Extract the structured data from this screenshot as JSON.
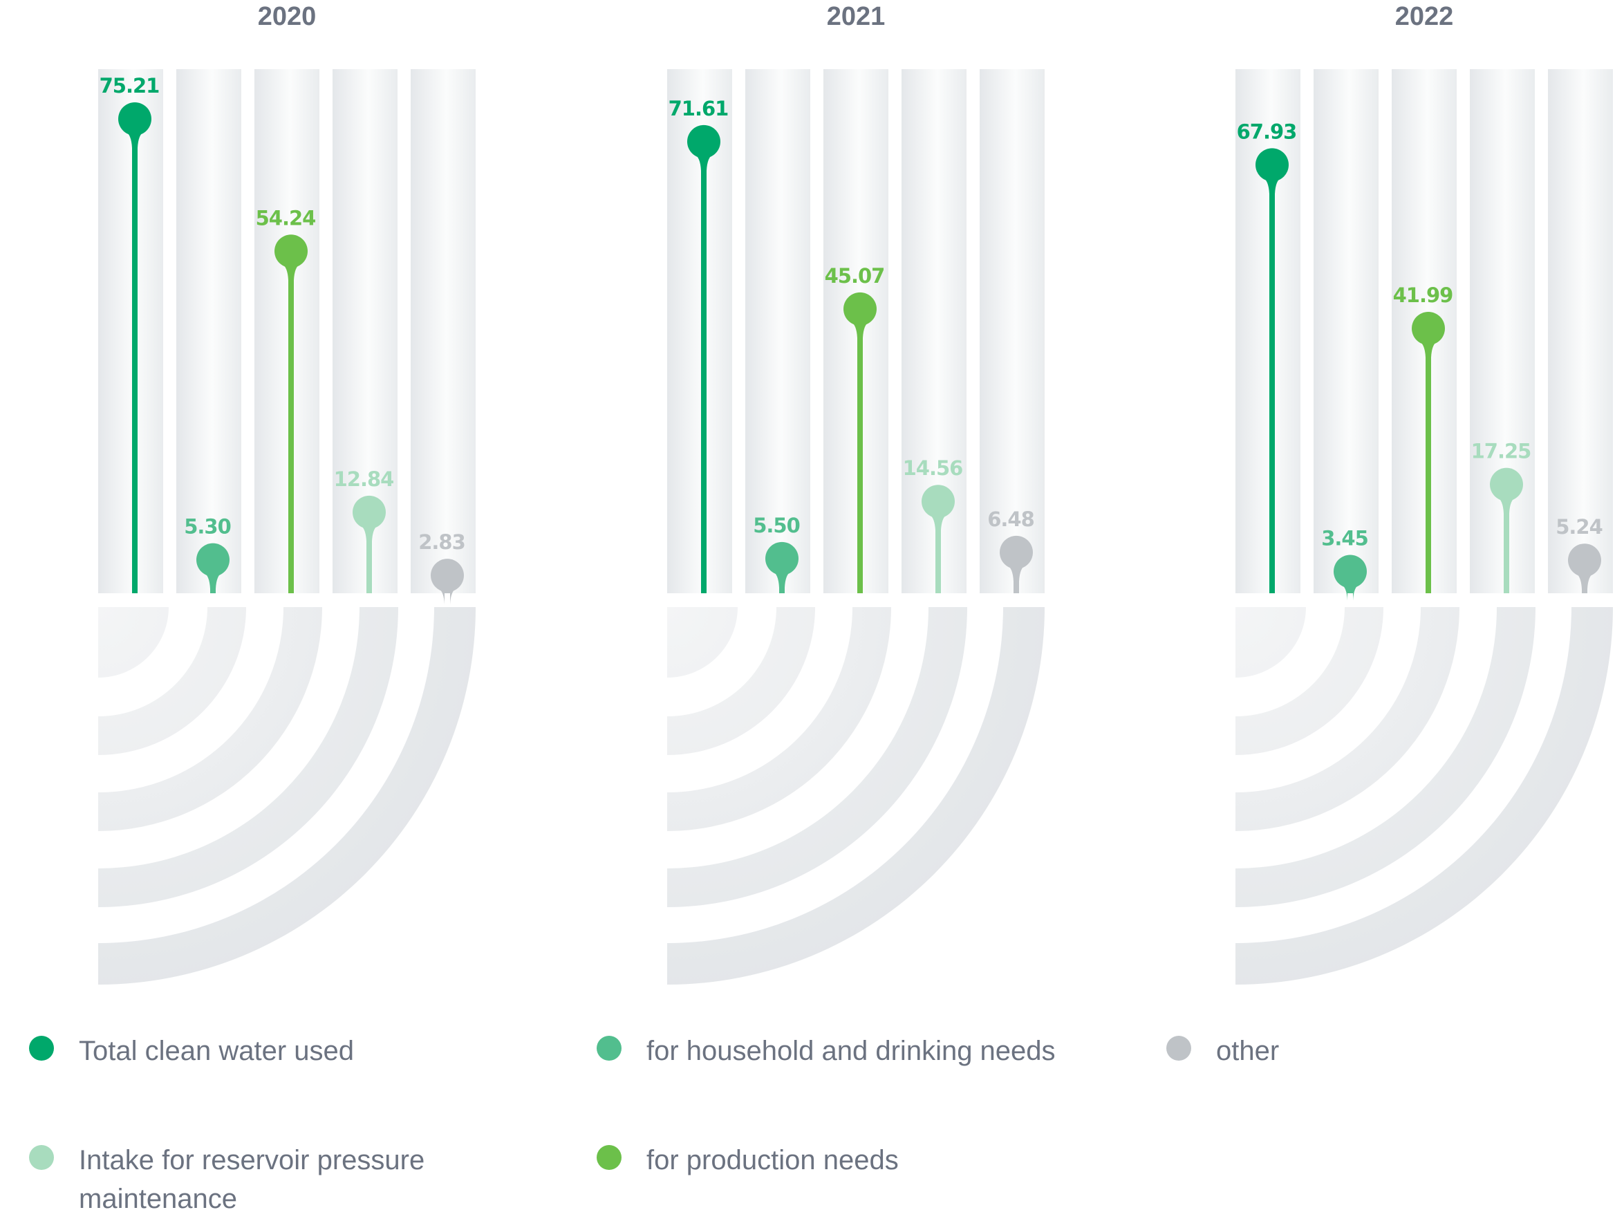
{
  "chart_data": {
    "type": "lollipop",
    "years": [
      "2020",
      "2021",
      "2022"
    ],
    "series": [
      {
        "name": "Total clean water used",
        "color": "#00a86b",
        "values": [
          75.21,
          71.61,
          67.93
        ],
        "labels": [
          "75.21",
          "71.61",
          "67.93"
        ]
      },
      {
        "name": "for household and drinking needs",
        "color": "#52be8e",
        "values": [
          5.3,
          5.5,
          3.45
        ],
        "labels": [
          "5.30",
          "5.50",
          "3.45"
        ]
      },
      {
        "name": "for production needs",
        "color": "#6cc04a",
        "values": [
          54.24,
          45.07,
          41.99
        ],
        "labels": [
          "54.24",
          "45.07",
          "41.99"
        ]
      },
      {
        "name": "Intake for reservoir pressure maintenance",
        "color": "#a8dcbe",
        "values": [
          12.84,
          14.56,
          17.25
        ],
        "labels": [
          "12.84",
          "14.56",
          "17.25"
        ]
      },
      {
        "name": "other",
        "color": "#bfc3c7",
        "values": [
          2.83,
          6.48,
          5.24
        ],
        "labels": [
          "2.83",
          "6.48",
          "5.24"
        ]
      }
    ]
  },
  "legend": [
    {
      "label": "Total clean water used",
      "color": "#00a86b"
    },
    {
      "label": "for household and drinking needs",
      "color": "#52be8e"
    },
    {
      "label": "other",
      "color": "#bfc3c7"
    },
    {
      "label": "Intake for reservoir pressure maintenance",
      "color": "#a8dcbe"
    },
    {
      "label": "for production needs",
      "color": "#6cc04a"
    }
  ]
}
